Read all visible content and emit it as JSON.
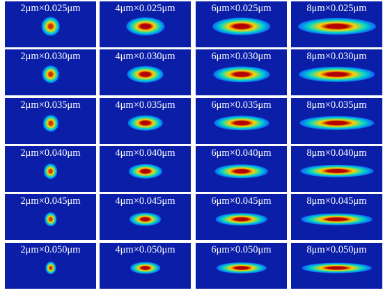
{
  "figure": {
    "panels": [
      {
        "label": "2μm×0.025μm",
        "width_um": 2,
        "height_um": 0.025
      },
      {
        "label": "4μm×0.025μm",
        "width_um": 4,
        "height_um": 0.025
      },
      {
        "label": "6μm×0.025μm",
        "width_um": 6,
        "height_um": 0.025
      },
      {
        "label": "8μm×0.025μm",
        "width_um": 8,
        "height_um": 0.025
      },
      {
        "label": "2μm×0.030μm",
        "width_um": 2,
        "height_um": 0.03
      },
      {
        "label": "4μm×0.030μm",
        "width_um": 4,
        "height_um": 0.03
      },
      {
        "label": "6μm×0.030μm",
        "width_um": 6,
        "height_um": 0.03
      },
      {
        "label": "8μm×0.030μm",
        "width_um": 8,
        "height_um": 0.03
      },
      {
        "label": "2μm×0.035μm",
        "width_um": 2,
        "height_um": 0.035
      },
      {
        "label": "4μm×0.035μm",
        "width_um": 4,
        "height_um": 0.035
      },
      {
        "label": "6μm×0.035μm",
        "width_um": 6,
        "height_um": 0.035
      },
      {
        "label": "8μm×0.035μm",
        "width_um": 8,
        "height_um": 0.035
      },
      {
        "label": "2μm×0.040μm",
        "width_um": 2,
        "height_um": 0.04
      },
      {
        "label": "4μm×0.040μm",
        "width_um": 4,
        "height_um": 0.04
      },
      {
        "label": "6μm×0.040μm",
        "width_um": 6,
        "height_um": 0.04
      },
      {
        "label": "8μm×0.040μm",
        "width_um": 8,
        "height_um": 0.04
      },
      {
        "label": "2μm×0.045μm",
        "width_um": 2,
        "height_um": 0.045
      },
      {
        "label": "4μm×0.045μm",
        "width_um": 4,
        "height_um": 0.045
      },
      {
        "label": "6μm×0.045μm",
        "width_um": 6,
        "height_um": 0.045
      },
      {
        "label": "8μm×0.045μm",
        "width_um": 8,
        "height_um": 0.045
      },
      {
        "label": "2μm×0.050μm",
        "width_um": 2,
        "height_um": 0.05
      },
      {
        "label": "4μm×0.050μm",
        "width_um": 4,
        "height_um": 0.05
      },
      {
        "label": "6μm×0.050μm",
        "width_um": 6,
        "height_um": 0.05
      },
      {
        "label": "8μm×0.050μm",
        "width_um": 8,
        "height_um": 0.05
      }
    ],
    "colors": {
      "background": "#0a1ea8",
      "core": "#b40000",
      "mid": "#ffd200",
      "outer": "#00d8c8",
      "edge": "#0f5aff"
    }
  }
}
